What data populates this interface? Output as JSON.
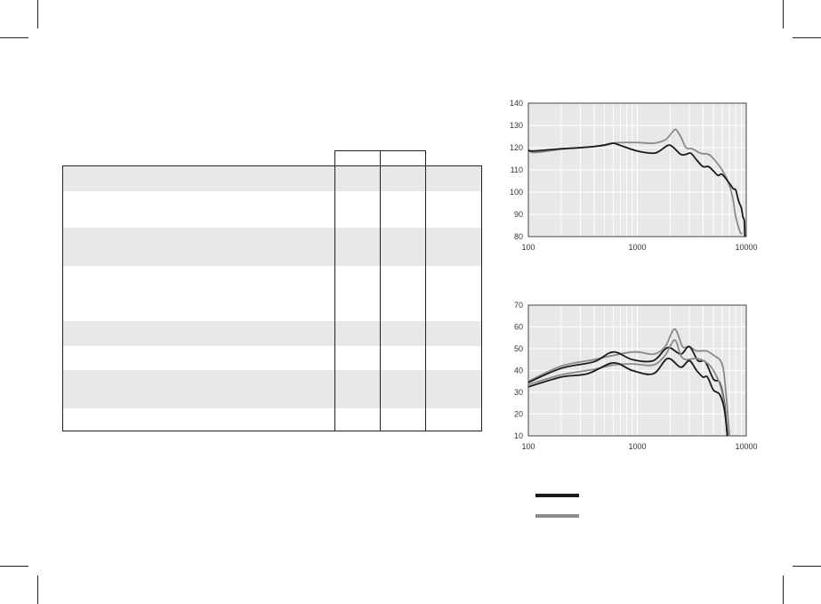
{
  "colors": {
    "dark_series": "#1a1a1a",
    "gray_series": "#8a8a8a",
    "plot_background": "#e8e8e8",
    "row_shade": "#e8e8e8"
  },
  "table": {
    "column_headers": [
      "",
      "",
      ""
    ],
    "rows": [
      {
        "shaded": true
      },
      {
        "shaded": false
      },
      {
        "shaded": true
      },
      {
        "shaded": false
      },
      {
        "shaded": true
      },
      {
        "shaded": false
      },
      {
        "shaded": true
      },
      {
        "shaded": false
      }
    ]
  },
  "legend": [
    {
      "color": "#1a1a1a",
      "label": ""
    },
    {
      "color": "#8a8a8a",
      "label": ""
    }
  ],
  "chart_data": [
    {
      "type": "line",
      "xscale": "log",
      "xlim": [
        100,
        10000
      ],
      "ylim": [
        80,
        140
      ],
      "xticks": [
        "100",
        "1000",
        "10000"
      ],
      "yticks": [
        "80",
        "90",
        "100",
        "110",
        "120",
        "130",
        "140"
      ],
      "grid": true,
      "series": [
        {
          "color": "#8a8a8a",
          "points": [
            [
              100,
              119
            ],
            [
              115,
              117.8
            ],
            [
              200,
              119.3
            ],
            [
              300,
              120
            ],
            [
              500,
              121
            ],
            [
              600,
              122
            ],
            [
              700,
              122.3
            ],
            [
              1000,
              122.3
            ],
            [
              1400,
              122
            ],
            [
              1800,
              123.5
            ],
            [
              2100,
              127
            ],
            [
              2250,
              128.2
            ],
            [
              2500,
              125
            ],
            [
              2800,
              120
            ],
            [
              3200,
              119.5
            ],
            [
              3800,
              117.5
            ],
            [
              4500,
              117
            ],
            [
              5000,
              115
            ],
            [
              6000,
              110
            ],
            [
              7000,
              103
            ],
            [
              7600,
              96
            ],
            [
              8000,
              89
            ],
            [
              8800,
              82
            ],
            [
              9200,
              81.5
            ]
          ]
        },
        {
          "color": "#1a1a1a",
          "points": [
            [
              100,
              119
            ],
            [
              110,
              118.5
            ],
            [
              200,
              119.5
            ],
            [
              300,
              120
            ],
            [
              400,
              120.5
            ],
            [
              500,
              121.2
            ],
            [
              600,
              122
            ],
            [
              700,
              121
            ],
            [
              1000,
              118.5
            ],
            [
              1400,
              117.5
            ],
            [
              1600,
              118.5
            ],
            [
              1900,
              121
            ],
            [
              2100,
              120.5
            ],
            [
              2500,
              117
            ],
            [
              2800,
              117
            ],
            [
              3100,
              117.5
            ],
            [
              3500,
              114.5
            ],
            [
              4000,
              111.5
            ],
            [
              4500,
              111.5
            ],
            [
              5000,
              109.5
            ],
            [
              5500,
              107.5
            ],
            [
              6000,
              108
            ],
            [
              7000,
              104
            ],
            [
              7600,
              101.5
            ],
            [
              8000,
              101
            ],
            [
              8500,
              96
            ],
            [
              9000,
              93
            ],
            [
              9300,
              89
            ],
            [
              9600,
              87
            ],
            [
              9700,
              80
            ]
          ]
        }
      ]
    },
    {
      "type": "line",
      "xscale": "log",
      "xlim": [
        100,
        10000
      ],
      "ylim": [
        10,
        70
      ],
      "xticks": [
        "100",
        "1000",
        "10000"
      ],
      "yticks": [
        "10",
        "20",
        "30",
        "40",
        "50",
        "60",
        "70"
      ],
      "grid": true,
      "series": [
        {
          "color": "#8a8a8a",
          "points": [
            [
              100,
              35
            ],
            [
              200,
              42
            ],
            [
              400,
              45
            ],
            [
              900,
              48.5
            ],
            [
              1400,
              47.5
            ],
            [
              1800,
              51
            ],
            [
              2200,
              59
            ],
            [
              2600,
              51
            ],
            [
              3000,
              51
            ],
            [
              3500,
              49
            ],
            [
              4300,
              49
            ],
            [
              5000,
              47
            ],
            [
              6000,
              43
            ],
            [
              6500,
              30
            ],
            [
              7000,
              10
            ]
          ]
        },
        {
          "color": "#1a1a1a",
          "points": [
            [
              100,
              34.5
            ],
            [
              200,
              41
            ],
            [
              400,
              44
            ],
            [
              600,
              48.5
            ],
            [
              900,
              45
            ],
            [
              1400,
              44.5
            ],
            [
              1900,
              50.5
            ],
            [
              2500,
              47.5
            ],
            [
              3000,
              51
            ],
            [
              3600,
              44.5
            ],
            [
              4200,
              44
            ],
            [
              5000,
              36
            ],
            [
              5700,
              34.5
            ],
            [
              6300,
              25
            ],
            [
              6700,
              10
            ]
          ]
        },
        {
          "color": "#8a8a8a",
          "points": [
            [
              100,
              33.5
            ],
            [
              200,
              38
            ],
            [
              400,
              40.5
            ],
            [
              600,
              42.5
            ],
            [
              900,
              43
            ],
            [
              1400,
              42.5
            ],
            [
              1800,
              47
            ],
            [
              2200,
              54
            ],
            [
              2500,
              47
            ],
            [
              2800,
              45
            ],
            [
              3500,
              45.5
            ],
            [
              4200,
              44
            ],
            [
              5000,
              40
            ],
            [
              6000,
              30
            ],
            [
              6800,
              10
            ]
          ]
        },
        {
          "color": "#1a1a1a",
          "points": [
            [
              100,
              32.5
            ],
            [
              200,
              37
            ],
            [
              350,
              38.5
            ],
            [
              600,
              43.5
            ],
            [
              900,
              40
            ],
            [
              1400,
              38.5
            ],
            [
              1900,
              45.5
            ],
            [
              2500,
              41.5
            ],
            [
              3000,
              44.5
            ],
            [
              3500,
              40
            ],
            [
              4000,
              37
            ],
            [
              4400,
              37
            ],
            [
              5000,
              31
            ],
            [
              5700,
              29
            ],
            [
              6300,
              22
            ],
            [
              6700,
              10
            ]
          ]
        }
      ]
    }
  ]
}
